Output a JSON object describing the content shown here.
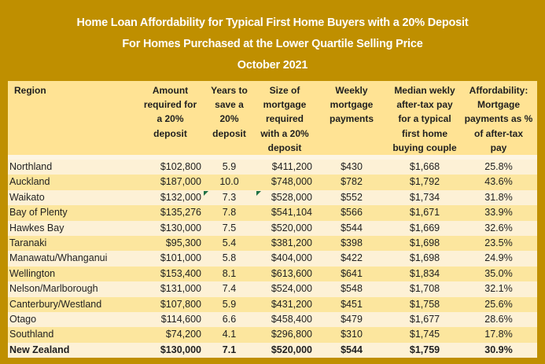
{
  "title": {
    "line1": "Home Loan Affordability for Typical First Home Buyers with a 20% Deposit",
    "line2": "For Homes Purchased at the Lower Quartile Selling Price",
    "line3": "October 2021"
  },
  "table": {
    "columns": [
      {
        "id": "region",
        "label": "Region"
      },
      {
        "id": "amount",
        "label": "Amount\nrequired for\na 20%\ndeposit"
      },
      {
        "id": "years",
        "label": "Years to\nsave a\n20%\ndeposit"
      },
      {
        "id": "size",
        "label": "Size of\nmortgage\nrequired\nwith a 20%\ndeposit"
      },
      {
        "id": "weekly",
        "label": "Weekly\nmortgage\npayments"
      },
      {
        "id": "median",
        "label": "Median wekly\nafter-tax pay\nfor a typical\nfirst home\nbuying couple"
      },
      {
        "id": "pct",
        "label": "Affordability:\nMortgage\npayments as %\nof after-tax\npay"
      }
    ],
    "rows": [
      {
        "region": "Northland",
        "amount": "$102,800",
        "years": "5.9",
        "size": "$411,200",
        "weekly": "$430",
        "median": "$1,668",
        "pct": "25.8%"
      },
      {
        "region": "Auckland",
        "amount": "$187,000",
        "years": "10.0",
        "size": "$748,000",
        "weekly": "$782",
        "median": "$1,792",
        "pct": "43.6%"
      },
      {
        "region": "Waikato",
        "amount": "$132,000",
        "years": "7.3",
        "size": "$528,000",
        "weekly": "$552",
        "median": "$1,734",
        "pct": "31.8%",
        "flags": [
          "years",
          "size"
        ]
      },
      {
        "region": "Bay of Plenty",
        "amount": "$135,276",
        "years": "7.8",
        "size": "$541,104",
        "weekly": "$566",
        "median": "$1,671",
        "pct": "33.9%"
      },
      {
        "region": "Hawkes Bay",
        "amount": "$130,000",
        "years": "7.5",
        "size": "$520,000",
        "weekly": "$544",
        "median": "$1,669",
        "pct": "32.6%"
      },
      {
        "region": "Taranaki",
        "amount": "$95,300",
        "years": "5.4",
        "size": "$381,200",
        "weekly": "$398",
        "median": "$1,698",
        "pct": "23.5%"
      },
      {
        "region": "Manawatu/Whanganui",
        "amount": "$101,000",
        "years": "5.8",
        "size": "$404,000",
        "weekly": "$422",
        "median": "$1,698",
        "pct": "24.9%"
      },
      {
        "region": "Wellington",
        "amount": "$153,400",
        "years": "8.1",
        "size": "$613,600",
        "weekly": "$641",
        "median": "$1,834",
        "pct": "35.0%"
      },
      {
        "region": "Nelson/Marlborough",
        "amount": "$131,000",
        "years": "7.4",
        "size": "$524,000",
        "weekly": "$548",
        "median": "$1,708",
        "pct": "32.1%"
      },
      {
        "region": "Canterbury/Westland",
        "amount": "$107,800",
        "years": "5.9",
        "size": "$431,200",
        "weekly": "$451",
        "median": "$1,758",
        "pct": "25.6%"
      },
      {
        "region": "Otago",
        "amount": "$114,600",
        "years": "6.6",
        "size": "$458,400",
        "weekly": "$479",
        "median": "$1,677",
        "pct": "28.6%"
      },
      {
        "region": "Southland",
        "amount": "$74,200",
        "years": "4.1",
        "size": "$296,800",
        "weekly": "$310",
        "median": "$1,745",
        "pct": "17.8%"
      },
      {
        "region": "New Zealand",
        "amount": "$130,000",
        "years": "7.1",
        "size": "$520,000",
        "weekly": "$544",
        "median": "$1,759",
        "pct": "30.9%",
        "bold": true
      }
    ]
  },
  "colors": {
    "frame_and_title_bg": "#BF8F00",
    "title_text": "#FFFFFF",
    "header_bg": "#FFE394",
    "row_light": "#FDF1D6",
    "row_dark": "#FCE69E",
    "body_text": "#1F1F1F",
    "error_indicator_green": "#1E7145"
  }
}
